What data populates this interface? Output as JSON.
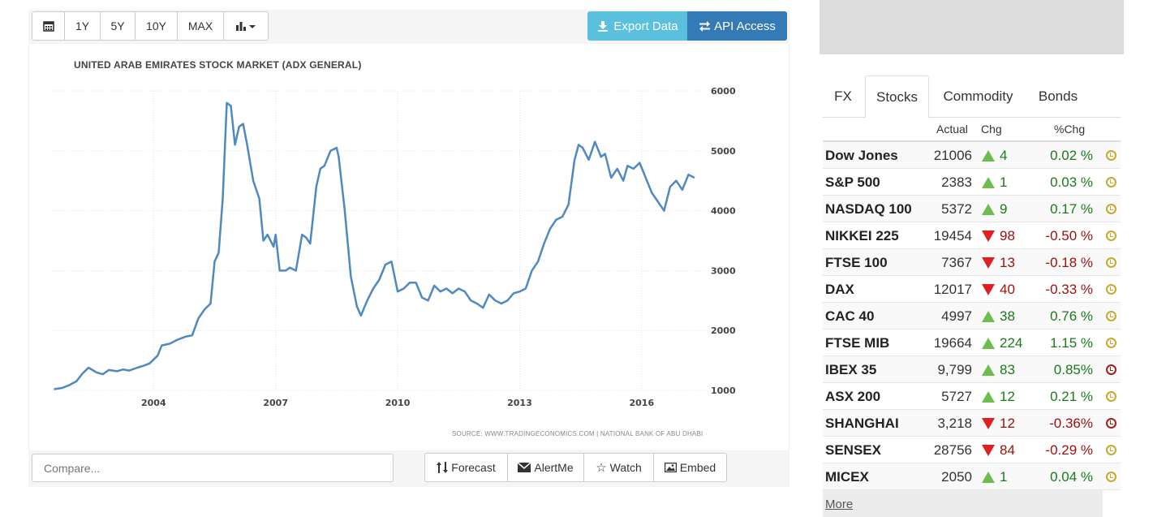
{
  "toolbar": {
    "range_buttons": [
      "1Y",
      "5Y",
      "10Y",
      "MAX"
    ],
    "export_label": "Export Data",
    "api_label": "API Access"
  },
  "chart_data": {
    "type": "line",
    "title": "UNITED ARAB EMIRATES STOCK MARKET (ADX GENERAL)",
    "source": "SOURCE: WWW.TRADINGECONOMICS.COM | NATIONAL BANK OF ABU DHABI",
    "xlabel": "",
    "ylabel": "",
    "x_ticks": [
      "2004",
      "2007",
      "2010",
      "2013",
      "2016"
    ],
    "y_ticks": [
      1000,
      2000,
      3000,
      4000,
      5000,
      6000
    ],
    "xlim": [
      2001.5,
      2017.6
    ],
    "ylim": [
      1000,
      6000
    ],
    "grid": true,
    "series": [
      {
        "color": "#4f89bf",
        "x": [
          2001.55,
          2001.75,
          2001.9,
          2002.1,
          2002.25,
          2002.4,
          2002.6,
          2002.75,
          2002.9,
          2003.1,
          2003.25,
          2003.4,
          2003.6,
          2003.75,
          2003.9,
          2004.1,
          2004.2,
          2004.4,
          2004.6,
          2004.8,
          2004.95,
          2005.1,
          2005.25,
          2005.4,
          2005.5,
          2005.6,
          2005.7,
          2005.8,
          2005.9,
          2006.0,
          2006.1,
          2006.2,
          2006.3,
          2006.45,
          2006.6,
          2006.7,
          2006.8,
          2006.95,
          2007.0,
          2007.1,
          2007.25,
          2007.35,
          2007.5,
          2007.65,
          2007.75,
          2007.85,
          2008.0,
          2008.1,
          2008.2,
          2008.35,
          2008.5,
          2008.55,
          2008.7,
          2008.85,
          2009.0,
          2009.1,
          2009.25,
          2009.4,
          2009.55,
          2009.7,
          2009.85,
          2010.0,
          2010.15,
          2010.3,
          2010.45,
          2010.6,
          2010.75,
          2010.9,
          2011.05,
          2011.2,
          2011.35,
          2011.5,
          2011.65,
          2011.8,
          2011.95,
          2012.1,
          2012.25,
          2012.4,
          2012.55,
          2012.7,
          2012.85,
          2013.0,
          2013.15,
          2013.3,
          2013.45,
          2013.6,
          2013.75,
          2013.9,
          2014.05,
          2014.2,
          2014.35,
          2014.45,
          2014.55,
          2014.7,
          2014.85,
          2015.0,
          2015.1,
          2015.25,
          2015.4,
          2015.55,
          2015.65,
          2015.8,
          2015.95,
          2016.1,
          2016.25,
          2016.4,
          2016.55,
          2016.7,
          2016.85,
          2017.0,
          2017.15,
          2017.3
        ],
        "y": [
          1020,
          1040,
          1080,
          1150,
          1280,
          1380,
          1300,
          1270,
          1340,
          1320,
          1350,
          1330,
          1380,
          1410,
          1450,
          1580,
          1750,
          1780,
          1850,
          1900,
          1920,
          2200,
          2350,
          2450,
          3150,
          3300,
          4200,
          5800,
          5750,
          5100,
          5400,
          5450,
          5100,
          4500,
          4200,
          3500,
          3600,
          3400,
          3600,
          3000,
          3000,
          3050,
          3000,
          3600,
          3550,
          3450,
          4400,
          4700,
          4750,
          5000,
          5050,
          4900,
          4000,
          2900,
          2400,
          2250,
          2500,
          2700,
          2850,
          3100,
          3150,
          2650,
          2700,
          2800,
          2800,
          2550,
          2500,
          2750,
          2650,
          2700,
          2620,
          2700,
          2650,
          2500,
          2450,
          2380,
          2600,
          2500,
          2450,
          2500,
          2620,
          2650,
          2700,
          3000,
          3150,
          3450,
          3700,
          3850,
          3900,
          4100,
          4850,
          5100,
          5050,
          4850,
          5150,
          4900,
          4950,
          4550,
          4700,
          4500,
          4750,
          4700,
          4800,
          4550,
          4300,
          4150,
          4000,
          4400,
          4500,
          4350,
          4600,
          4550
        ]
      }
    ]
  },
  "bottom": {
    "compare_placeholder": "Compare...",
    "forecast_label": "Forecast",
    "alertme_label": "AlertMe",
    "watch_label": "Watch",
    "embed_label": "Embed"
  },
  "market_panel": {
    "tabs": [
      "FX",
      "Stocks",
      "Commodity",
      "Bonds"
    ],
    "active_tab": "Stocks",
    "headers": {
      "actual": "Actual",
      "chg": "Chg",
      "pct": "%Chg"
    },
    "rows": [
      {
        "name": "Dow Jones",
        "actual": "21006",
        "dir": "up",
        "chg": "4",
        "pct": "0.02 %",
        "clock": "yellow"
      },
      {
        "name": "S&P 500",
        "actual": "2383",
        "dir": "up",
        "chg": "1",
        "pct": "0.03 %",
        "clock": "yellow"
      },
      {
        "name": "NASDAQ 100",
        "actual": "5372",
        "dir": "up",
        "chg": "9",
        "pct": "0.17 %",
        "clock": "yellow"
      },
      {
        "name": "NIKKEI 225",
        "actual": "19454",
        "dir": "down",
        "chg": "98",
        "pct": "-0.50 %",
        "clock": "yellow"
      },
      {
        "name": "FTSE 100",
        "actual": "7367",
        "dir": "down",
        "chg": "13",
        "pct": "-0.18 %",
        "clock": "yellow"
      },
      {
        "name": "DAX",
        "actual": "12017",
        "dir": "down",
        "chg": "40",
        "pct": "-0.33 %",
        "clock": "yellow"
      },
      {
        "name": "CAC 40",
        "actual": "4997",
        "dir": "up",
        "chg": "38",
        "pct": "0.76 %",
        "clock": "yellow"
      },
      {
        "name": "FTSE MIB",
        "actual": "19664",
        "dir": "up",
        "chg": "224",
        "pct": "1.15 %",
        "clock": "yellow"
      },
      {
        "name": "IBEX 35",
        "actual": "9,799",
        "dir": "up",
        "chg": "83",
        "pct": "0.85%",
        "clock": "red"
      },
      {
        "name": "ASX 200",
        "actual": "5727",
        "dir": "up",
        "chg": "12",
        "pct": "0.21 %",
        "clock": "yellow"
      },
      {
        "name": "SHANGHAI",
        "actual": "3,218",
        "dir": "down",
        "chg": "12",
        "pct": "-0.36%",
        "clock": "red"
      },
      {
        "name": "SENSEX",
        "actual": "28756",
        "dir": "down",
        "chg": "84",
        "pct": "-0.29 %",
        "clock": "yellow"
      },
      {
        "name": "MICEX",
        "actual": "2050",
        "dir": "up",
        "chg": "1",
        "pct": "0.04 %",
        "clock": "yellow"
      }
    ],
    "more_label": "More"
  }
}
